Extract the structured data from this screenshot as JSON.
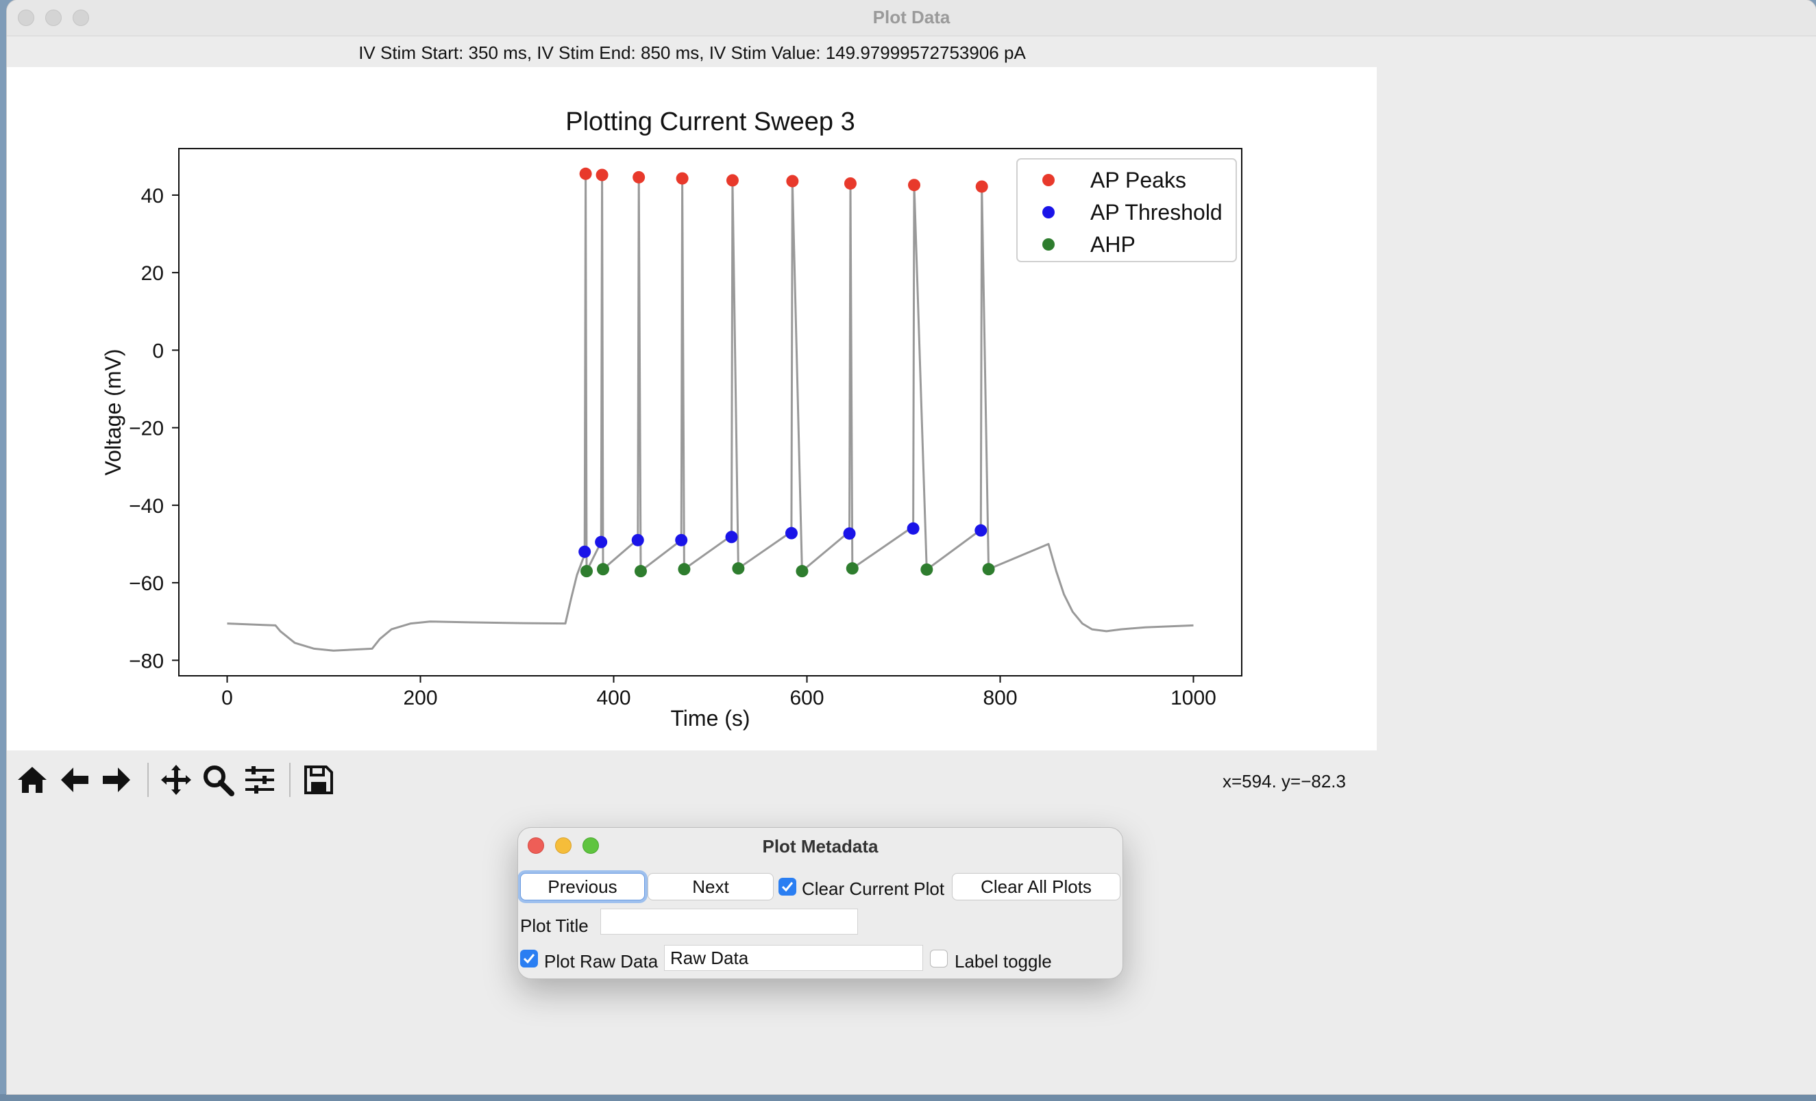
{
  "window": {
    "title": "Plot Data"
  },
  "stim_info": "IV Stim Start: 350 ms, IV Stim End: 850 ms, IV Stim Value: 149.97999572753906 pA",
  "chart_data": {
    "type": "line",
    "title": "Plotting Current Sweep 3",
    "xlabel": "Time (s)",
    "ylabel": "Voltage (mV)",
    "xlim": [
      -50,
      1050
    ],
    "ylim": [
      -84,
      52
    ],
    "x_ticks": [
      0,
      200,
      400,
      600,
      800,
      1000
    ],
    "x_tick_labels": [
      "0",
      "200",
      "400",
      "600",
      "800",
      "1000"
    ],
    "y_ticks": [
      40,
      20,
      0,
      -20,
      -40,
      -60,
      -80
    ],
    "y_tick_labels": [
      "40",
      "20",
      "0",
      "−20",
      "−40",
      "−60",
      "−80"
    ],
    "legend_position": "top-right",
    "colors": {
      "trace": "#999999",
      "peaks": "#e8392b",
      "threshold": "#1a14e8",
      "ahp": "#2e7d2e"
    },
    "trace": {
      "x": [
        0,
        50,
        55,
        70,
        90,
        110,
        150,
        158,
        170,
        190,
        210,
        250,
        300,
        350,
        356,
        362,
        368,
        372
      ],
      "y": [
        -70.5,
        -71,
        -72.5,
        -75.5,
        -77,
        -77.5,
        -77,
        -74.5,
        -72,
        -70.5,
        -70,
        -70.2,
        -70.4,
        -70.5,
        -64,
        -58,
        -54,
        -52
      ]
    },
    "spikes": [
      {
        "peak": [
          371,
          45.5
        ],
        "threshold": [
          370,
          -52
        ],
        "ahp": [
          372,
          -57
        ],
        "next_ramp_end": [
          386,
          -50
        ]
      },
      {
        "peak": [
          388,
          45.2
        ],
        "threshold": [
          387,
          -49.5
        ],
        "ahp": [
          389,
          -56.5
        ],
        "next_ramp_end": [
          424,
          -49
        ]
      },
      {
        "peak": [
          426,
          44.6
        ],
        "threshold": [
          425,
          -49
        ],
        "ahp": [
          428,
          -57
        ],
        "next_ramp_end": [
          470,
          -49
        ]
      },
      {
        "peak": [
          471,
          44.3
        ],
        "threshold": [
          470,
          -49
        ],
        "ahp": [
          473,
          -56.5
        ],
        "next_ramp_end": [
          521,
          -48
        ]
      },
      {
        "peak": [
          523,
          43.8
        ],
        "threshold": [
          522,
          -48.2
        ],
        "ahp": [
          529,
          -56.3
        ],
        "next_ramp_end": [
          583,
          -47
        ]
      },
      {
        "peak": [
          585,
          43.6
        ],
        "threshold": [
          584,
          -47.2
        ],
        "ahp": [
          595,
          -57
        ],
        "next_ramp_end": [
          643,
          -47
        ]
      },
      {
        "peak": [
          645,
          43.0
        ],
        "threshold": [
          644,
          -47.3
        ],
        "ahp": [
          647,
          -56.3
        ],
        "next_ramp_end": [
          710,
          -45.5
        ]
      },
      {
        "peak": [
          711,
          42.6
        ],
        "threshold": [
          710,
          -46
        ],
        "ahp": [
          724,
          -56.6
        ],
        "next_ramp_end": [
          779,
          -46.5
        ]
      },
      {
        "peak": [
          781,
          42.2
        ],
        "threshold": [
          780,
          -46.5
        ],
        "ahp": [
          788,
          -56.5
        ],
        "next_ramp_end": [
          850,
          -50
        ]
      }
    ],
    "trace_tail": {
      "x": [
        850,
        858,
        866,
        875,
        885,
        895,
        910,
        925,
        950,
        1000
      ],
      "y": [
        -50,
        -57,
        -63,
        -67.5,
        -70.5,
        -72,
        -72.5,
        -72,
        -71.5,
        -71
      ]
    },
    "series": [
      {
        "name": "AP Peaks"
      },
      {
        "name": "AP Threshold"
      },
      {
        "name": "AHP"
      }
    ]
  },
  "toolbar": {
    "icons": [
      "home-icon",
      "back-arrow-icon",
      "forward-arrow-icon",
      "pan-icon",
      "zoom-icon",
      "configure-icon",
      "save-icon"
    ],
    "coords": "x=594. y=−82.3"
  },
  "dialog": {
    "title": "Plot Metadata",
    "previous_label": "Previous",
    "next_label": "Next",
    "clear_current_label": "Clear Current Plot",
    "clear_current_checked": true,
    "clear_all_label": "Clear All Plots",
    "plot_title_label": "Plot Title",
    "plot_title_value": "",
    "plot_raw_label": "Plot Raw Data",
    "plot_raw_checked": true,
    "raw_data_value": "Raw Data",
    "label_toggle_label": "Label toggle",
    "label_toggle_checked": false
  }
}
